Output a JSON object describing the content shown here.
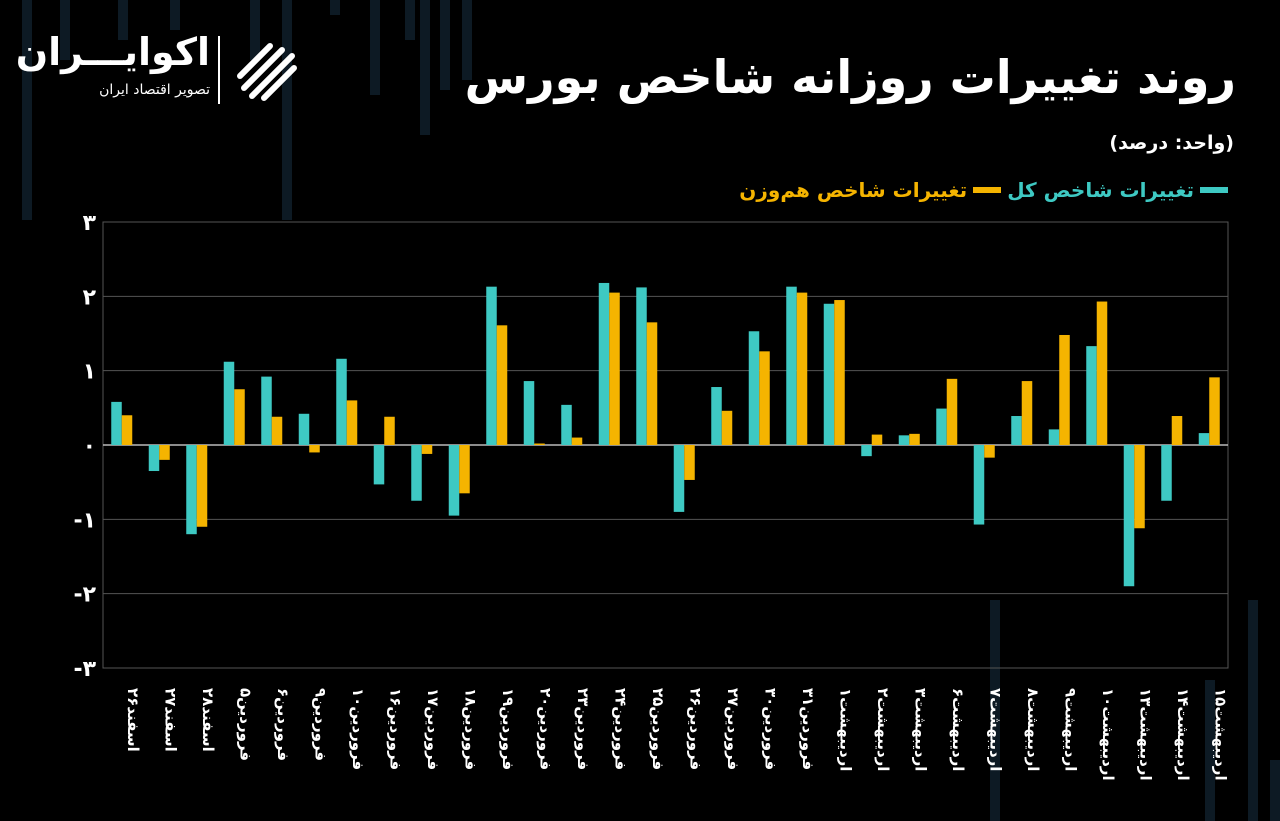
{
  "header": {
    "title": "روند تغییرات روزانه شاخص بورس",
    "unit": "(واحد: درصد)"
  },
  "logo": {
    "name": "اکوایـــران",
    "tagline": "تصویر اقتصاد ایران"
  },
  "colors": {
    "background": "#000000",
    "series_total": "#3ec9c3",
    "series_equal": "#f5b400",
    "grid": "#555555"
  },
  "chart_data": {
    "type": "bar",
    "title": "روند تغییرات روزانه شاخص بورس",
    "xlabel": "",
    "ylabel": "",
    "ylim": [
      -3,
      3
    ],
    "yticks": [
      3,
      2,
      1,
      0,
      -1,
      -2,
      -3
    ],
    "ytick_labels": [
      "۳",
      "۲",
      "۱",
      "۰",
      "-۱",
      "-۲",
      "-۳"
    ],
    "grid": true,
    "legend_position": "top-right",
    "categories": [
      "اسفند۲۶",
      "اسفند۲۷",
      "اسفند۲۸",
      "فروردین۵",
      "فروردین۶",
      "فروردین۹",
      "فروردین۱۰",
      "فروردین۱۶",
      "فروردین۱۷",
      "فروردین۱۸",
      "فروردین۱۹",
      "فروردین۲۰",
      "فروردین۲۳",
      "فروردین۲۴",
      "فروردین۲۵",
      "فروردین۲۶",
      "فروردین۲۷",
      "فروردین۳۰",
      "فروردین۳۱",
      "اردیبهشت۱",
      "اردیبهشت۲",
      "اردیبهشت۳",
      "اردیبهشت۶",
      "اردیبهشت۷",
      "اردیبهشت۸",
      "اردیبهشت۹",
      "اردیبهشت۱۰",
      "اردیبهشت۱۳",
      "اردیبهشت۱۴",
      "اردیبهشت۱۵"
    ],
    "series": [
      {
        "name": "تغییرات شاخص کل",
        "color": "#3ec9c3",
        "values": [
          0.58,
          -0.35,
          -1.2,
          1.12,
          0.92,
          0.42,
          1.16,
          -0.53,
          -0.75,
          -0.95,
          2.13,
          0.86,
          0.54,
          2.18,
          2.12,
          -0.9,
          0.78,
          1.53,
          2.13,
          1.9,
          -0.15,
          0.13,
          0.49,
          -1.07,
          0.39,
          0.21,
          1.33,
          -1.9,
          -0.75,
          0.16
        ]
      },
      {
        "name": "تغییرات شاخص هم‌وزن",
        "color": "#f5b400",
        "values": [
          0.4,
          -0.2,
          -1.1,
          0.75,
          0.38,
          -0.1,
          0.6,
          0.38,
          -0.12,
          -0.65,
          1.61,
          0.02,
          0.1,
          2.05,
          1.65,
          -0.47,
          0.46,
          1.26,
          2.05,
          1.95,
          0.14,
          0.15,
          0.89,
          -0.17,
          0.86,
          1.48,
          1.93,
          -1.12,
          0.39,
          0.91
        ]
      }
    ]
  }
}
